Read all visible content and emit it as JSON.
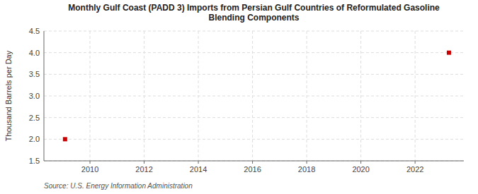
{
  "chart_data": {
    "type": "scatter",
    "title": "Monthly Gulf Coast (PADD 3) Imports from Persian Gulf Countries of Reformulated Gasoline\nBlending Components",
    "ylabel": "Thousand Barrels per Day",
    "source": "Source: U.S. Energy Information Administration",
    "x": [
      2009.08,
      2023.25
    ],
    "values": [
      2.0,
      4.0
    ],
    "color": "#cc0000",
    "marker": "square",
    "xlim": [
      2008.3,
      2023.8
    ],
    "ylim": [
      1.5,
      4.5
    ],
    "xticks": [
      2010,
      2012,
      2014,
      2016,
      2018,
      2020,
      2022
    ],
    "yticks": [
      1.5,
      {
        "value": 2.0,
        "label": "2.0"
      },
      2.5,
      {
        "value": 3.0,
        "label": "3.0"
      },
      3.5,
      {
        "value": 4.0,
        "label": "4.0"
      },
      4.5
    ],
    "grid": true
  }
}
